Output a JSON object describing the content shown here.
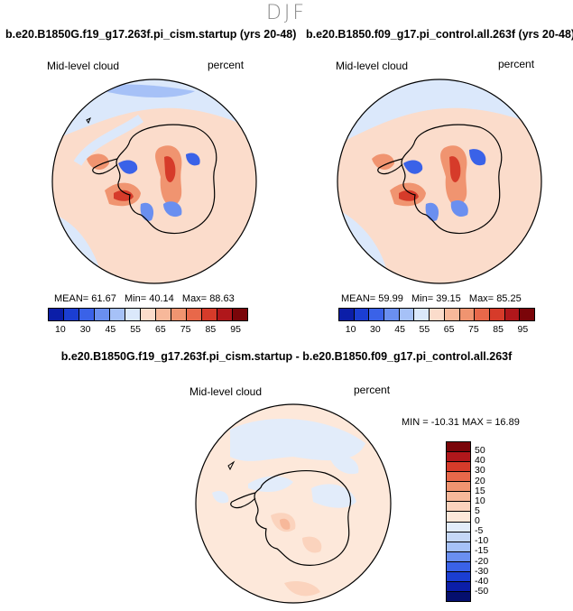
{
  "season_title": "DJF",
  "panels": [
    {
      "case": "b.e20.B1850G.f19_g17.263f.pi_cism.startup (yrs 20-48)",
      "variable_label": "Mid-level cloud",
      "units_label": "percent",
      "stats": {
        "mean_label": "MEAN=",
        "mean": "61.67",
        "min_label": "Min=",
        "min": "40.14",
        "max_label": "Max=",
        "max": "88.63"
      }
    },
    {
      "case": "b.e20.B1850.f09_g17.pi_control.all.263f (yrs 20-48)",
      "variable_label": "Mid-level cloud",
      "units_label": "percent",
      "stats": {
        "mean_label": "MEAN=",
        "mean": "59.99",
        "min_label": "Min=",
        "min": "39.15",
        "max_label": "Max=",
        "max": "85.25"
      }
    }
  ],
  "colorbar": {
    "ticks": [
      "10",
      "30",
      "45",
      "55",
      "65",
      "75",
      "85",
      "95"
    ],
    "colors": [
      "#0b1ea8",
      "#1b3ed2",
      "#3a62e8",
      "#6a8ff0",
      "#a6c1f7",
      "#dbe8fb",
      "#fbdccb",
      "#f7b89a",
      "#f09470",
      "#e8684a",
      "#d63b2a",
      "#b0171b",
      "#7a0509"
    ]
  },
  "difference": {
    "title": "b.e20.B1850G.f19_g17.263f.pi_cism.startup - b.e20.B1850.f09_g17.pi_control.all.263f",
    "variable_label": "Mid-level cloud",
    "units_label": "percent",
    "stats": "MIN = -10.31  MAX =  16.89",
    "colorbar": {
      "ticks": [
        "50",
        "40",
        "30",
        "20",
        "15",
        "10",
        "5",
        "0",
        "-5",
        "-10",
        "-15",
        "-20",
        "-30",
        "-40",
        "-50"
      ],
      "colors": [
        "#7a0509",
        "#b0171b",
        "#d63b2a",
        "#e8684a",
        "#f09470",
        "#f7b89a",
        "#fbd3bd",
        "#fde8da",
        "#e2ecfa",
        "#c5d7f6",
        "#a6c1f7",
        "#6a8ff0",
        "#3a62e8",
        "#1b3ed2",
        "#0b1ea8",
        "#050f6e"
      ]
    }
  }
}
